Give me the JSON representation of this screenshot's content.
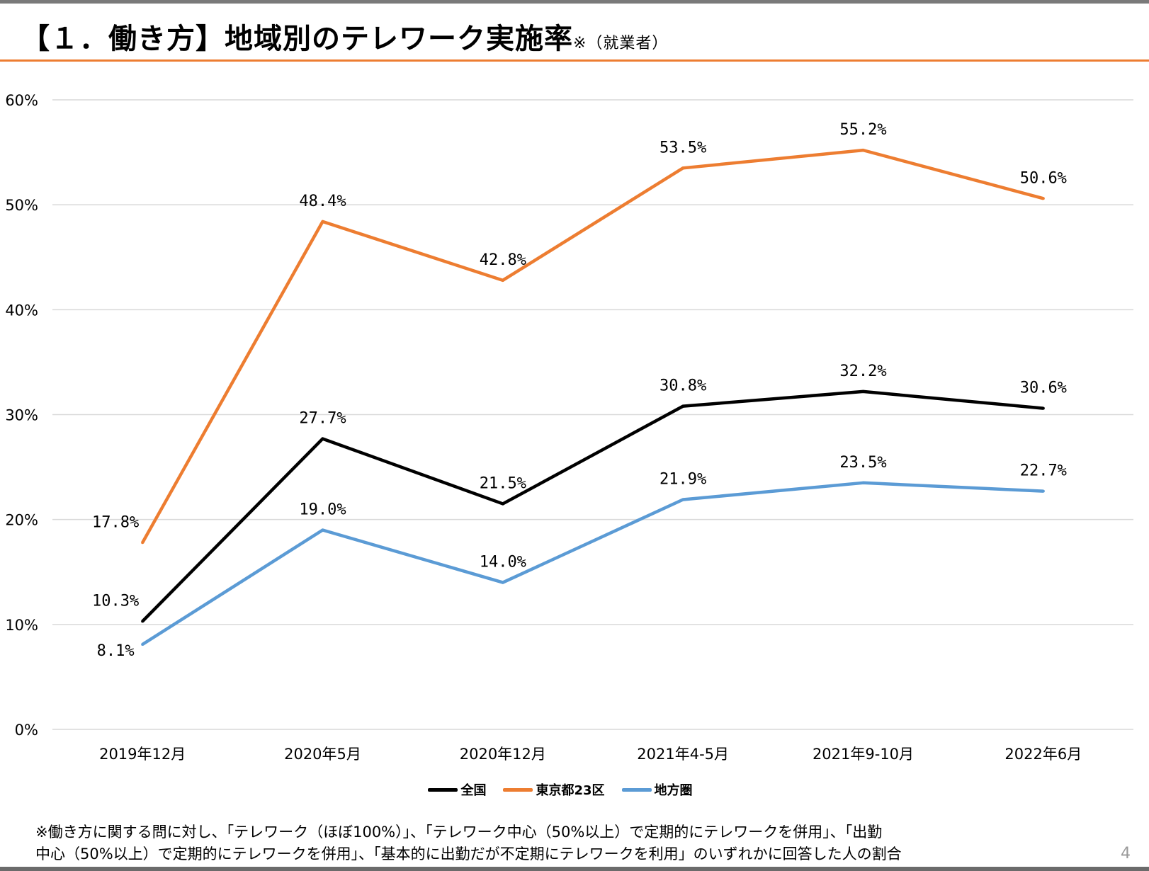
{
  "header": {
    "title": "【１．働き方】地域別のテレワーク実施率",
    "title_suffix": "※（就業者）"
  },
  "chart_data": {
    "type": "line",
    "categories": [
      "2019年12月",
      "2020年5月",
      "2020年12月",
      "2021年4-5月",
      "2021年9-10月",
      "2022年6月"
    ],
    "ylim": [
      0,
      60
    ],
    "yticks": [
      "0%",
      "10%",
      "20%",
      "30%",
      "40%",
      "50%",
      "60%"
    ],
    "grid": true,
    "legend_position": "bottom",
    "series": [
      {
        "name": "全国",
        "color": "#000000",
        "values": [
          10.3,
          27.7,
          21.5,
          30.8,
          32.2,
          30.6
        ],
        "labels": [
          "10.3%",
          "27.7%",
          "21.5%",
          "30.8%",
          "32.2%",
          "30.6%"
        ]
      },
      {
        "name": "東京都23区",
        "color": "#ed7d31",
        "values": [
          17.8,
          48.4,
          42.8,
          53.5,
          55.2,
          50.6
        ],
        "labels": [
          "17.8%",
          "48.4%",
          "42.8%",
          "53.5%",
          "55.2%",
          "50.6%"
        ]
      },
      {
        "name": "地方圏",
        "color": "#5b9bd5",
        "values": [
          8.1,
          19.0,
          14.0,
          21.9,
          23.5,
          22.7
        ],
        "labels": [
          "8.1%",
          "19.0%",
          "14.0%",
          "21.9%",
          "23.5%",
          "22.7%"
        ]
      }
    ]
  },
  "footnote": {
    "line1": "※働き方に関する問に対し、「テレワーク（ほぼ100%）」、「テレワーク中心（50%以上）で定期的にテレワークを併用」、「出勤",
    "line2": "中心（50%以上）で定期的にテレワークを併用」、「基本的に出勤だが不定期にテレワークを利用」のいずれかに回答した人の割合"
  },
  "page_number": "4"
}
